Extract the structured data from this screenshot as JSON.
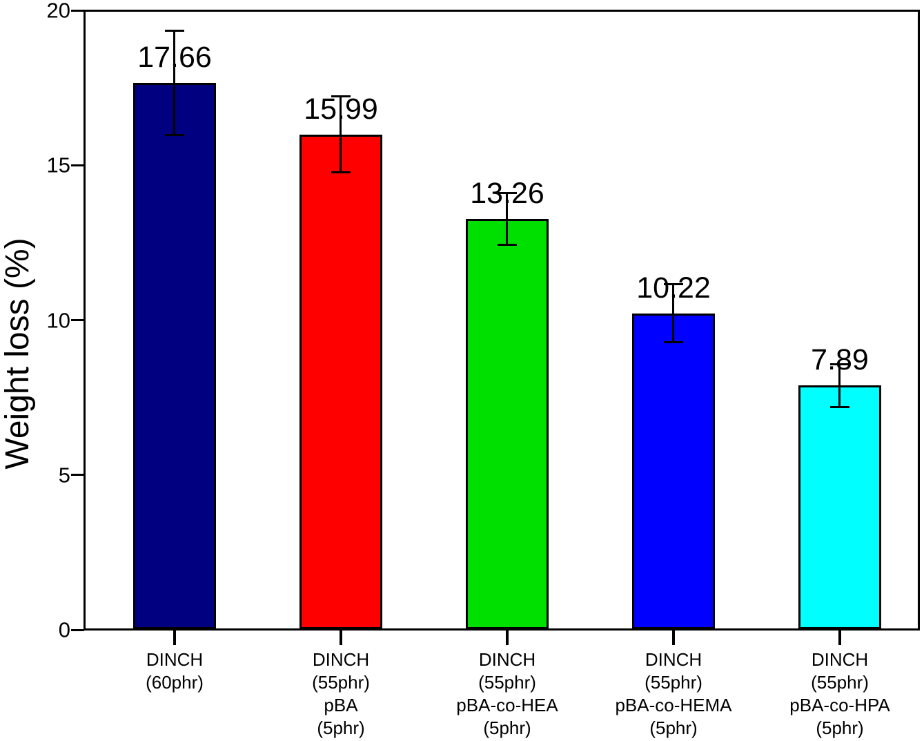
{
  "chart_data": {
    "type": "bar",
    "title": "",
    "xlabel": "",
    "ylabel": "Weight loss (%)",
    "ylim": [
      0,
      20
    ],
    "yticks": [
      0,
      5,
      10,
      15,
      20
    ],
    "grid": false,
    "legend_position": "none",
    "categories": [
      [
        "DINCH",
        "(60phr)"
      ],
      [
        "DINCH",
        "(55phr)",
        "pBA",
        "(5phr)"
      ],
      [
        "DINCH",
        "(55phr)",
        "pBA-co-HEA",
        "(5phr)"
      ],
      [
        "DINCH",
        "(55phr)",
        "pBA-co-HEMA",
        "(5phr)"
      ],
      [
        "DINCH",
        "(55phr)",
        "pBA-co-HPA",
        "(5phr)"
      ]
    ],
    "values": [
      17.66,
      15.99,
      13.26,
      10.22,
      7.89
    ],
    "value_labels": [
      "17.66",
      "15.99",
      "13.26",
      "10.22",
      "7.89"
    ],
    "errors": [
      1.7,
      1.24,
      0.85,
      0.95,
      0.7
    ],
    "bar_colors": [
      "#000080",
      "#FF0000",
      "#00E000",
      "#0000FF",
      "#00FFFF"
    ],
    "axis_color": "#000000",
    "background_color": "#ffffff"
  }
}
